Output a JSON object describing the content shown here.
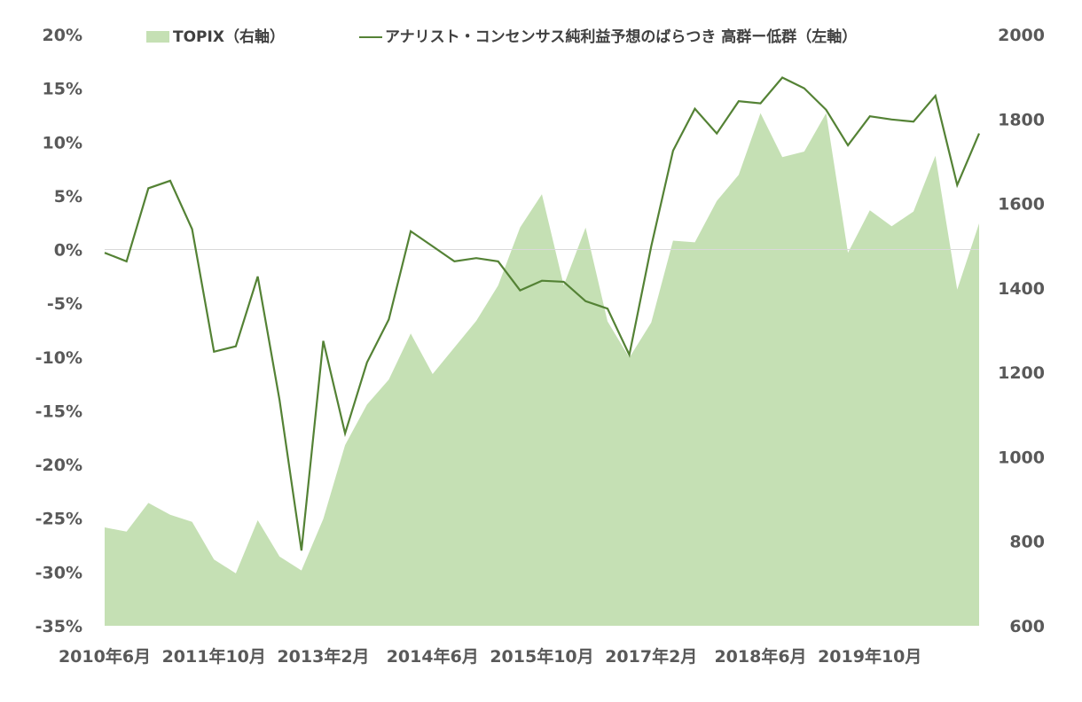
{
  "chart_data": {
    "type": "line+area",
    "title": "",
    "x_labels": [
      "2010年6月",
      "2011年10月",
      "2013年2月",
      "2014年6月",
      "2015年10月",
      "2017年2月",
      "2018年6月",
      "2019年10月"
    ],
    "left_axis": {
      "range": [
        -35,
        20
      ],
      "ticks": [
        20,
        15,
        10,
        5,
        0,
        -5,
        -10,
        -15,
        -20,
        -25,
        -30,
        -35
      ],
      "tick_labels": [
        "20%",
        "15%",
        "10%",
        "5%",
        "0%",
        "-5%",
        "-10%",
        "-15%",
        "-20%",
        "-25%",
        "-30%",
        "-35%"
      ]
    },
    "right_axis": {
      "range": [
        600,
        2000
      ],
      "ticks": [
        2000,
        1800,
        1600,
        1400,
        1200,
        1000,
        800,
        600
      ],
      "tick_labels": [
        "2000",
        "1800",
        "1600",
        "1400",
        "1200",
        "1000",
        "800",
        "600"
      ]
    },
    "grid": false,
    "legend_position": "top",
    "series": [
      {
        "name": "TOPIX（右軸）",
        "type": "area",
        "axis": "right",
        "color": "#c5e0b4",
        "values": [
          833,
          823,
          891,
          863,
          846,
          757,
          724,
          850,
          764,
          731,
          853,
          1028,
          1124,
          1183,
          1292,
          1196,
          1259,
          1322,
          1406,
          1543,
          1622,
          1406,
          1543,
          1321,
          1235,
          1318,
          1512,
          1508,
          1606,
          1668,
          1814,
          1710,
          1723,
          1814,
          1483,
          1584,
          1546,
          1581,
          1713,
          1396,
          1553
        ]
      },
      {
        "name": "アナリスト・コンセンサス純利益予想のばらつき 高群ー低群（左軸）",
        "type": "line",
        "axis": "left",
        "color": "#548235",
        "values": [
          -0.3,
          -1.1,
          5.7,
          6.4,
          1.9,
          -9.5,
          -9.0,
          -2.5,
          -14.0,
          -28.0,
          -8.5,
          -17.1,
          -10.5,
          -6.5,
          1.7,
          0.3,
          -1.1,
          -0.8,
          -1.1,
          -3.8,
          -2.9,
          -3.0,
          -4.8,
          -5.5,
          -9.8,
          0.3,
          9.2,
          13.1,
          10.8,
          13.8,
          13.6,
          16.0,
          15.0,
          13.0,
          9.7,
          12.4,
          12.1,
          11.9,
          14.3,
          6.0,
          10.8
        ]
      }
    ],
    "colors": {
      "area": "#c5e0b4",
      "line": "#548235",
      "zero_line": "#d9d9d9",
      "tick_text": "#595959"
    }
  }
}
